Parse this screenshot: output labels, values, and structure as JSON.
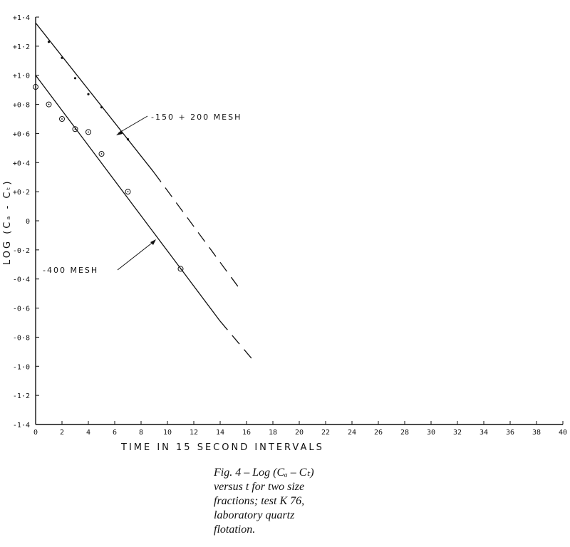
{
  "chart_data": {
    "type": "line",
    "xlabel": "TIME IN 15 SECOND INTERVALS",
    "ylabel": "LOG (Cₐ - Cₜ)",
    "xlim": [
      0,
      40
    ],
    "ylim": [
      -1.4,
      1.4
    ],
    "x_ticks": [
      "0",
      "2",
      "4",
      "6",
      "8",
      "10",
      "12",
      "14",
      "16",
      "18",
      "20",
      "22",
      "24",
      "26",
      "28",
      "30",
      "32",
      "34",
      "36",
      "38",
      "40"
    ],
    "y_ticks": [
      {
        "value": 1.4,
        "label": "+1·4"
      },
      {
        "value": 1.2,
        "label": "+1·2"
      },
      {
        "value": 1.0,
        "label": "+1·0"
      },
      {
        "value": 0.8,
        "label": "+0·8"
      },
      {
        "value": 0.6,
        "label": "+0·6"
      },
      {
        "value": 0.4,
        "label": "+0·4"
      },
      {
        "value": 0.2,
        "label": "+0·2"
      },
      {
        "value": 0.0,
        "label": "0"
      },
      {
        "value": -0.2,
        "label": "-0·2"
      },
      {
        "value": -0.4,
        "label": "-0·4"
      },
      {
        "value": -0.6,
        "label": "-0·6"
      },
      {
        "value": -0.8,
        "label": "-0·8"
      },
      {
        "value": -1.0,
        "label": "-1·0"
      },
      {
        "value": -1.2,
        "label": "-1·2"
      },
      {
        "value": -1.4,
        "label": "-1·4"
      }
    ],
    "grid": false,
    "series": [
      {
        "name": "-150 + 200 MESH",
        "marker": "dot",
        "points": [
          [
            1,
            1.23
          ],
          [
            2,
            1.12
          ],
          [
            3,
            0.98
          ],
          [
            4,
            0.87
          ],
          [
            5,
            0.78
          ],
          [
            7,
            0.56
          ]
        ],
        "fit_solid": [
          [
            0,
            1.36
          ],
          [
            9,
            0.33
          ]
        ],
        "fit_dashed": [
          [
            9,
            0.33
          ],
          [
            15.5,
            -0.47
          ]
        ]
      },
      {
        "name": "-400 MESH",
        "marker": "circle",
        "points": [
          [
            0,
            0.92
          ],
          [
            1,
            0.8
          ],
          [
            2,
            0.7
          ],
          [
            3,
            0.63
          ],
          [
            4,
            0.61
          ],
          [
            5,
            0.46
          ],
          [
            7,
            0.2
          ],
          [
            11,
            -0.33
          ]
        ],
        "fit_solid": [
          [
            0,
            1.0
          ],
          [
            14,
            -0.69
          ]
        ],
        "fit_dashed": [
          [
            14,
            -0.69
          ],
          [
            16.7,
            -0.98
          ]
        ]
      }
    ]
  },
  "caption": {
    "line1": "Fig. 4 – Log (Cₐ – Cₜ)",
    "line2": "versus t for two size",
    "line3": "fractions; test K 76,",
    "line4": "laboratory quartz",
    "line5": "flotation."
  }
}
